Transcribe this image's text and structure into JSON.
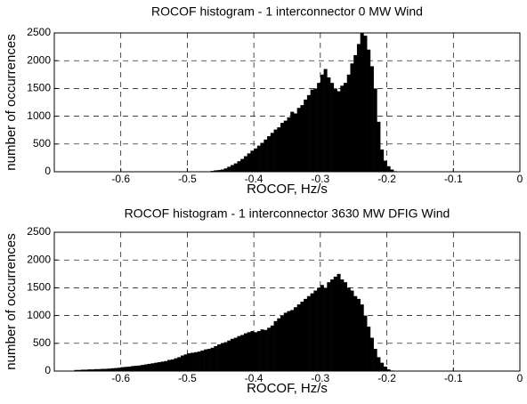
{
  "chart_data": [
    {
      "type": "histogram",
      "title": "ROCOF histogram - 1 interconnector 0 MW Wind",
      "x_label": "ROCOF, Hz/s",
      "y_label": "number of occurrences",
      "color": "#000000",
      "grid": true,
      "xlim": [
        -0.7,
        0
      ],
      "xticks": [
        -0.6,
        -0.5,
        -0.4,
        -0.3,
        -0.2,
        -0.1,
        0
      ],
      "ylim": [
        0,
        2500
      ],
      "yticks": [
        0,
        500,
        1000,
        1500,
        2000,
        2500
      ],
      "bins": [
        -0.47,
        -0.465,
        -0.46,
        -0.455,
        -0.45,
        -0.445,
        -0.44,
        -0.435,
        -0.43,
        -0.425,
        -0.42,
        -0.415,
        -0.41,
        -0.405,
        -0.4,
        -0.395,
        -0.39,
        -0.385,
        -0.38,
        -0.375,
        -0.37,
        -0.365,
        -0.36,
        -0.355,
        -0.35,
        -0.345,
        -0.34,
        -0.335,
        -0.33,
        -0.325,
        -0.32,
        -0.315,
        -0.31,
        -0.305,
        -0.3,
        -0.295,
        -0.29,
        -0.285,
        -0.28,
        -0.275,
        -0.27,
        -0.265,
        -0.26,
        -0.255,
        -0.25,
        -0.245,
        -0.24,
        -0.235,
        -0.23,
        -0.225,
        -0.22,
        -0.215,
        -0.21,
        -0.205,
        -0.2,
        -0.195,
        -0.19,
        -0.185
      ],
      "values": [
        5,
        15,
        25,
        30,
        40,
        60,
        90,
        120,
        150,
        190,
        230,
        280,
        330,
        380,
        420,
        470,
        520,
        580,
        640,
        700,
        760,
        800,
        880,
        920,
        980,
        1080,
        1050,
        1150,
        1200,
        1300,
        1380,
        1480,
        1500,
        1600,
        1750,
        1850,
        1700,
        1600,
        1500,
        1450,
        1550,
        1600,
        1750,
        1950,
        2100,
        2300,
        2500,
        2450,
        2200,
        1900,
        1500,
        900,
        400,
        200,
        100,
        40,
        10
      ]
    },
    {
      "type": "histogram",
      "title": "ROCOF histogram - 1 interconnector 3630 MW DFIG Wind",
      "x_label": "ROCOF, Hz/s",
      "y_label": "number of occurrences",
      "color": "#000000",
      "grid": true,
      "xlim": [
        -0.7,
        0
      ],
      "xticks": [
        -0.6,
        -0.5,
        -0.4,
        -0.3,
        -0.2,
        -0.1,
        0
      ],
      "ylim": [
        0,
        2500
      ],
      "yticks": [
        0,
        500,
        1000,
        1500,
        2000,
        2500
      ],
      "bins": [
        -0.67,
        -0.665,
        -0.66,
        -0.655,
        -0.65,
        -0.645,
        -0.64,
        -0.635,
        -0.63,
        -0.625,
        -0.62,
        -0.615,
        -0.61,
        -0.605,
        -0.6,
        -0.595,
        -0.59,
        -0.585,
        -0.58,
        -0.575,
        -0.57,
        -0.565,
        -0.56,
        -0.555,
        -0.55,
        -0.545,
        -0.54,
        -0.535,
        -0.53,
        -0.525,
        -0.52,
        -0.515,
        -0.51,
        -0.505,
        -0.5,
        -0.495,
        -0.49,
        -0.485,
        -0.48,
        -0.475,
        -0.47,
        -0.465,
        -0.46,
        -0.455,
        -0.45,
        -0.445,
        -0.44,
        -0.435,
        -0.43,
        -0.425,
        -0.42,
        -0.415,
        -0.41,
        -0.405,
        -0.4,
        -0.395,
        -0.39,
        -0.385,
        -0.38,
        -0.375,
        -0.37,
        -0.365,
        -0.36,
        -0.355,
        -0.35,
        -0.345,
        -0.34,
        -0.335,
        -0.33,
        -0.325,
        -0.32,
        -0.315,
        -0.31,
        -0.305,
        -0.3,
        -0.295,
        -0.29,
        -0.285,
        -0.28,
        -0.275,
        -0.27,
        -0.265,
        -0.26,
        -0.255,
        -0.25,
        -0.245,
        -0.24,
        -0.235,
        -0.23,
        -0.225,
        -0.22,
        -0.215,
        -0.21,
        -0.205,
        -0.2,
        -0.195,
        -0.19
      ],
      "values": [
        20,
        20,
        25,
        25,
        30,
        30,
        35,
        35,
        40,
        40,
        45,
        50,
        55,
        60,
        70,
        75,
        80,
        90,
        95,
        100,
        110,
        120,
        130,
        140,
        150,
        160,
        170,
        180,
        200,
        210,
        230,
        250,
        280,
        300,
        320,
        330,
        340,
        350,
        370,
        390,
        400,
        420,
        450,
        480,
        500,
        520,
        550,
        580,
        600,
        630,
        650,
        680,
        700,
        720,
        700,
        720,
        750,
        740,
        780,
        820,
        900,
        950,
        1000,
        1050,
        1080,
        1100,
        1150,
        1200,
        1250,
        1300,
        1350,
        1400,
        1450,
        1500,
        1550,
        1500,
        1600,
        1650,
        1700,
        1750,
        1650,
        1600,
        1500,
        1450,
        1350,
        1300,
        1200,
        1000,
        800,
        600,
        400,
        250,
        150,
        80,
        30,
        10
      ]
    }
  ]
}
